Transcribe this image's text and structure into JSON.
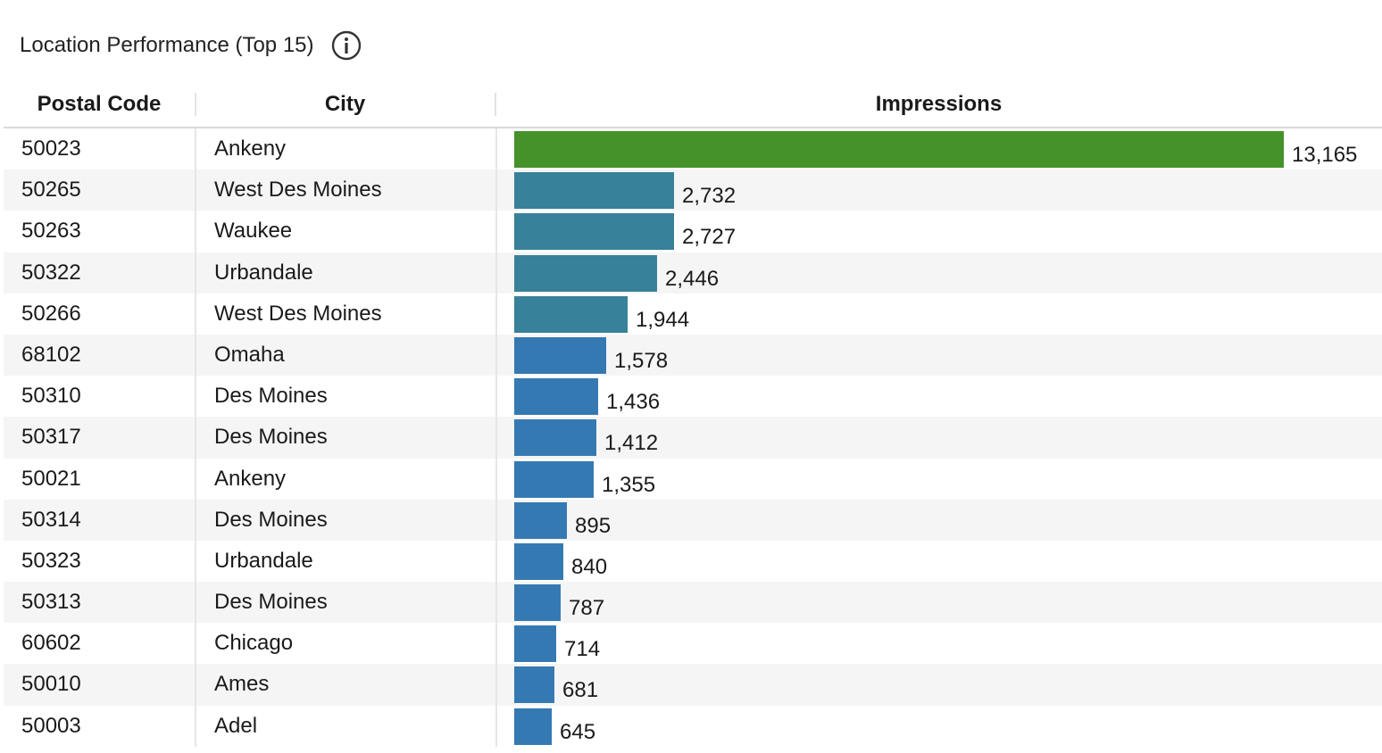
{
  "title": "Location Performance (Top 15)",
  "icons": {
    "info": "info-icon"
  },
  "columns": {
    "postal": "Postal Code",
    "city": "City",
    "impressions": "Impressions"
  },
  "colors": {
    "top_bar": "#45922b",
    "bar_teal": "#37819a",
    "bar_blue": "#3579b3"
  },
  "chart_data": {
    "type": "bar",
    "orientation": "horizontal",
    "title": "Location Performance (Top 15)",
    "xlabel": "Impressions",
    "categories": [
      "50023",
      "50265",
      "50263",
      "50322",
      "50266",
      "68102",
      "50310",
      "50317",
      "50021",
      "50314",
      "50323",
      "50313",
      "60602",
      "50010",
      "50003"
    ],
    "cities": [
      "Ankeny",
      "West Des Moines",
      "Waukee",
      "Urbandale",
      "West Des Moines",
      "Omaha",
      "Des Moines",
      "Des Moines",
      "Ankeny",
      "Des Moines",
      "Urbandale",
      "Des Moines",
      "Chicago",
      "Ames",
      "Adel"
    ],
    "values": [
      13165,
      2732,
      2727,
      2446,
      1944,
      1578,
      1436,
      1412,
      1355,
      895,
      840,
      787,
      714,
      681,
      645
    ],
    "labels": [
      "13,165",
      "2,732",
      "2,727",
      "2,446",
      "1,944",
      "1,578",
      "1,436",
      "1,412",
      "1,355",
      "895",
      "840",
      "787",
      "714",
      "681",
      "645"
    ],
    "xlim": [
      0,
      13165
    ]
  }
}
